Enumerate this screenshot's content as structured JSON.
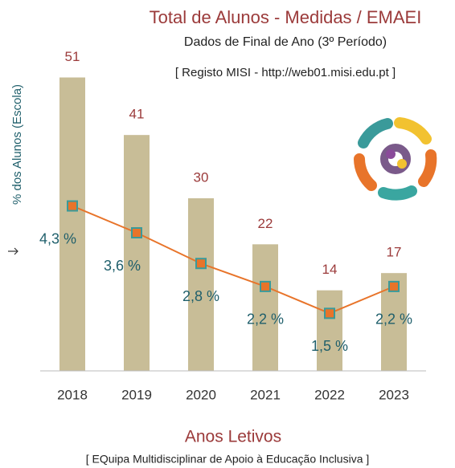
{
  "chart_data": {
    "type": "bar",
    "title": "Total de Alunos - Medidas / EMAEI",
    "subtitle": "Dados de Final de Ano (3º Período)",
    "source": "[ Registo MISI - http://web01.misi.edu.pt ]",
    "y2_label": "% dos Alunos (Escola)",
    "x_label": "Anos Letivos",
    "footer": "[ EQuipa Multidisciplinar de Apoio à Educação Inclusiva ]",
    "categories": [
      "2018",
      "2019",
      "2020",
      "2021",
      "2022",
      "2023"
    ],
    "series": [
      {
        "type": "bar",
        "color": "#c8bd97",
        "label_color": "#9b3a3a",
        "values": [
          51,
          41,
          30,
          22,
          14,
          17
        ]
      },
      {
        "type": "line",
        "axis": "y2",
        "color": "#e8742a",
        "marker_edge_color": "#3a9a9a",
        "label_color": "#1f5f6b",
        "values": [
          4.3,
          3.6,
          2.8,
          2.2,
          1.5,
          2.2
        ],
        "value_labels": [
          "4,3 %",
          "3,6 %",
          "2,8 %",
          "2,2 %",
          "1,5 %",
          "2,2 %"
        ]
      }
    ],
    "ylim": [
      0,
      60
    ],
    "y2lim": [
      0,
      9
    ],
    "grid": false
  }
}
